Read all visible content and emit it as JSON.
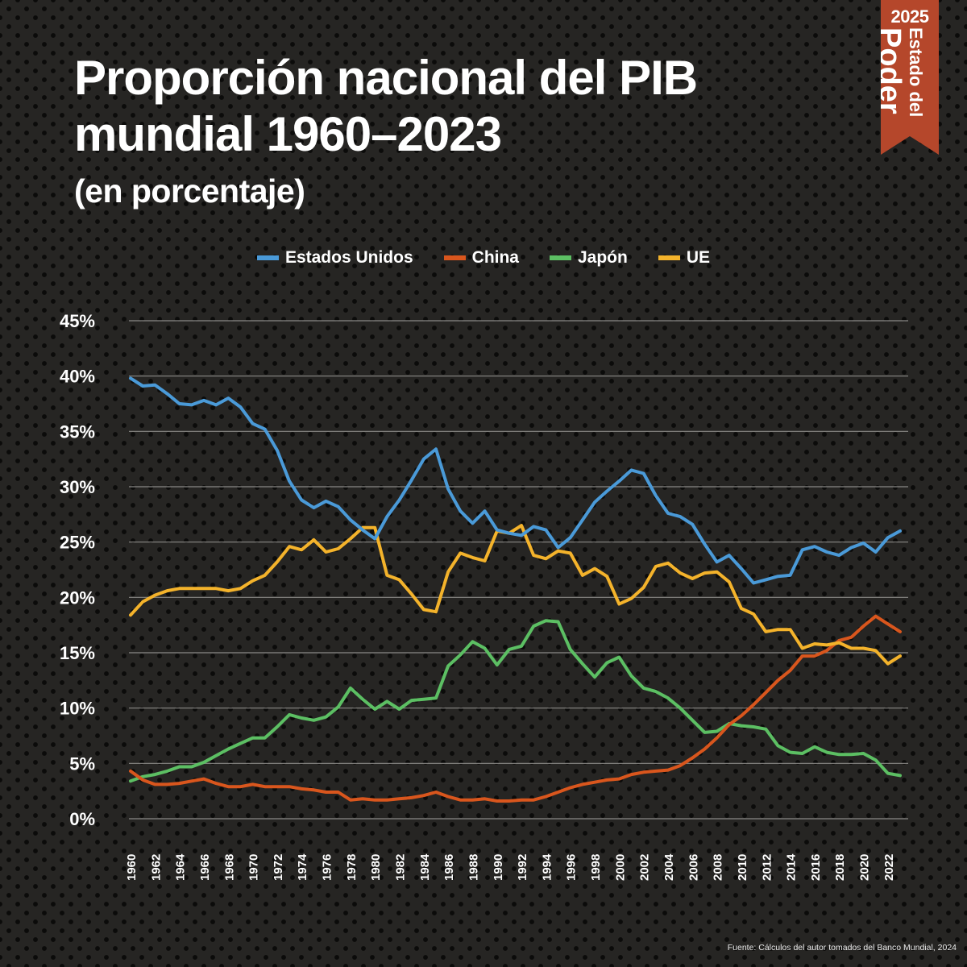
{
  "header": {
    "title_line1": "Proporción nacional del PIB",
    "title_line2": "mundial 1960–2023",
    "subtitle": "(en porcentaje)"
  },
  "badge": {
    "year": "2025",
    "line1": "Estado del",
    "line2": "Poder",
    "color": "#b5472b"
  },
  "source": "Fuente: Cálculos del autor tomados del Banco Mundial, 2024",
  "chart_data": {
    "type": "line",
    "title": "Proporción nacional del PIB mundial 1960–2023",
    "subtitle": "(en porcentaje)",
    "xlabel": "",
    "ylabel": "",
    "ylim": [
      0,
      45
    ],
    "yticks": [
      0,
      5,
      10,
      15,
      20,
      25,
      30,
      35,
      40,
      45
    ],
    "ytick_labels": [
      "0%",
      "5%",
      "10%",
      "15%",
      "20%",
      "25%",
      "30%",
      "35%",
      "40%",
      "45%"
    ],
    "xlim": [
      1960,
      2023
    ],
    "xtick_labels": [
      "1960",
      "1962",
      "1964",
      "1966",
      "1968",
      "1970",
      "1972",
      "1974",
      "1976",
      "1978",
      "1980",
      "1982",
      "1984",
      "1986",
      "1988",
      "1990",
      "1992",
      "1994",
      "1996",
      "1998",
      "2000",
      "2002",
      "2004",
      "2006",
      "2008",
      "2010",
      "2012",
      "2014",
      "2016",
      "2018",
      "2020",
      "2022"
    ],
    "grid": true,
    "legend_position": "top-center",
    "x": [
      1960,
      1961,
      1962,
      1963,
      1964,
      1965,
      1966,
      1967,
      1968,
      1969,
      1970,
      1971,
      1972,
      1973,
      1974,
      1975,
      1976,
      1977,
      1978,
      1979,
      1980,
      1981,
      1982,
      1983,
      1984,
      1985,
      1986,
      1987,
      1988,
      1989,
      1990,
      1991,
      1992,
      1993,
      1994,
      1995,
      1996,
      1997,
      1998,
      1999,
      2000,
      2001,
      2002,
      2003,
      2004,
      2005,
      2006,
      2007,
      2008,
      2009,
      2010,
      2011,
      2012,
      2013,
      2014,
      2015,
      2016,
      2017,
      2018,
      2019,
      2020,
      2021,
      2022,
      2023
    ],
    "series": [
      {
        "name": "Estados Unidos",
        "color": "#4a9ad8",
        "values": [
          39.8,
          39.1,
          39.2,
          38.4,
          37.5,
          37.4,
          37.8,
          37.4,
          38.0,
          37.2,
          35.7,
          35.2,
          33.3,
          30.5,
          28.8,
          28.1,
          28.7,
          28.2,
          27.0,
          26.1,
          25.3,
          27.3,
          28.8,
          30.6,
          32.5,
          33.4,
          29.8,
          27.8,
          26.7,
          27.8,
          26.1,
          25.8,
          25.6,
          26.4,
          26.1,
          24.5,
          25.4,
          27.0,
          28.6,
          29.6,
          30.5,
          31.5,
          31.2,
          29.2,
          27.6,
          27.3,
          26.6,
          24.8,
          23.2,
          23.8,
          22.6,
          21.3,
          21.6,
          21.9,
          22.0,
          24.3,
          24.6,
          24.1,
          23.8,
          24.5,
          24.9,
          24.1,
          25.4,
          26.0
        ]
      },
      {
        "name": "China",
        "color": "#d9561d",
        "values": [
          4.3,
          3.5,
          3.1,
          3.1,
          3.2,
          3.4,
          3.6,
          3.2,
          2.9,
          2.9,
          3.1,
          2.9,
          2.9,
          2.9,
          2.7,
          2.6,
          2.4,
          2.4,
          1.7,
          1.8,
          1.7,
          1.7,
          1.8,
          1.9,
          2.1,
          2.4,
          2.0,
          1.7,
          1.7,
          1.8,
          1.6,
          1.6,
          1.7,
          1.7,
          2.0,
          2.4,
          2.8,
          3.1,
          3.3,
          3.5,
          3.6,
          4.0,
          4.2,
          4.3,
          4.4,
          4.8,
          5.5,
          6.3,
          7.3,
          8.5,
          9.3,
          10.3,
          11.4,
          12.5,
          13.4,
          14.7,
          14.7,
          15.2,
          16.1,
          16.4,
          17.4,
          18.3,
          17.6,
          16.9
        ]
      },
      {
        "name": "Japón",
        "color": "#5cbf63",
        "values": [
          3.4,
          3.8,
          4.0,
          4.3,
          4.7,
          4.7,
          5.1,
          5.7,
          6.3,
          6.8,
          7.3,
          7.3,
          8.3,
          9.4,
          9.1,
          8.9,
          9.2,
          10.1,
          11.8,
          10.8,
          9.9,
          10.6,
          9.9,
          10.7,
          10.8,
          10.9,
          13.8,
          14.8,
          16.0,
          15.4,
          13.9,
          15.3,
          15.6,
          17.4,
          17.9,
          17.8,
          15.3,
          14.0,
          12.8,
          14.1,
          14.6,
          12.9,
          11.8,
          11.5,
          10.9,
          10.0,
          8.9,
          7.8,
          7.9,
          8.6,
          8.4,
          8.3,
          8.1,
          6.6,
          6.0,
          5.9,
          6.5,
          6.0,
          5.8,
          5.8,
          5.9,
          5.3,
          4.1,
          3.9
        ]
      },
      {
        "name": "UE",
        "color": "#f4b32b",
        "values": [
          18.4,
          19.6,
          20.2,
          20.6,
          20.8,
          20.8,
          20.8,
          20.8,
          20.6,
          20.8,
          21.5,
          22.0,
          23.2,
          24.6,
          24.3,
          25.2,
          24.1,
          24.4,
          25.3,
          26.3,
          26.3,
          22.0,
          21.6,
          20.3,
          18.9,
          18.7,
          22.3,
          24.0,
          23.6,
          23.3,
          26.0,
          25.8,
          26.5,
          23.8,
          23.5,
          24.2,
          24.0,
          22.0,
          22.6,
          21.9,
          19.4,
          19.9,
          20.9,
          22.8,
          23.1,
          22.2,
          21.7,
          22.2,
          22.3,
          21.4,
          19.0,
          18.5,
          16.9,
          17.1,
          17.1,
          15.4,
          15.8,
          15.7,
          15.9,
          15.4,
          15.4,
          15.2,
          14.0,
          14.7
        ]
      }
    ]
  }
}
